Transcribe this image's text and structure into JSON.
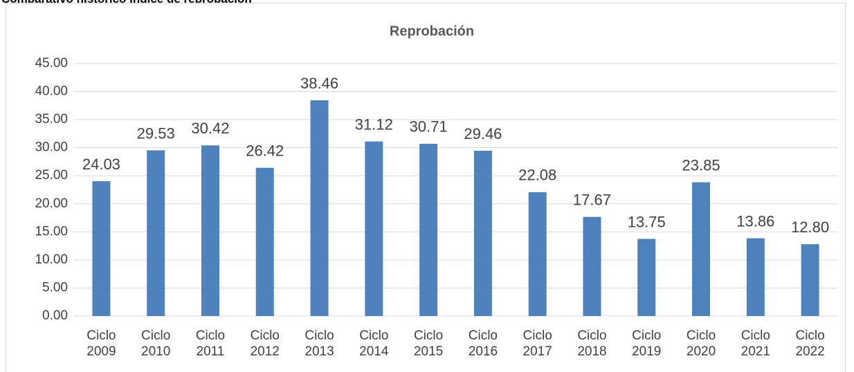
{
  "header": {
    "title": "Comparativo histórico índice de reprobación"
  },
  "chart_data": {
    "type": "bar",
    "title": "Reprobación",
    "categories": [
      "Ciclo 2009",
      "Ciclo 2010",
      "Ciclo 2011",
      "Ciclo 2012",
      "Ciclo 2013",
      "Ciclo 2014",
      "Ciclo 2015",
      "Ciclo 2016",
      "Ciclo 2017",
      "Ciclo 2018",
      "Ciclo 2019",
      "Ciclo 2020",
      "Ciclo 2021",
      "Ciclo 2022"
    ],
    "values": [
      24.03,
      29.53,
      30.42,
      26.42,
      38.46,
      31.12,
      30.71,
      29.46,
      22.08,
      17.67,
      13.75,
      23.85,
      13.86,
      12.8
    ],
    "value_labels": [
      "24.03",
      "29.53",
      "30.42",
      "26.42",
      "38.46",
      "31.12",
      "30.71",
      "29.46",
      "22.08",
      "17.67",
      "13.75",
      "23.85",
      "13.86",
      "12.80"
    ],
    "color": "#4f81bd",
    "ylim": [
      0,
      45
    ],
    "yticks": [
      {
        "value": 0,
        "label": "0.00"
      },
      {
        "value": 5,
        "label": "5.00"
      },
      {
        "value": 10,
        "label": "10.00"
      },
      {
        "value": 15,
        "label": "15.00"
      },
      {
        "value": 20,
        "label": "20.00"
      },
      {
        "value": 25,
        "label": "25.00"
      },
      {
        "value": 30,
        "label": "30.00"
      },
      {
        "value": 35,
        "label": "35.00"
      },
      {
        "value": 40,
        "label": "40.00"
      },
      {
        "value": 45,
        "label": "45.00"
      }
    ],
    "grid": true
  }
}
